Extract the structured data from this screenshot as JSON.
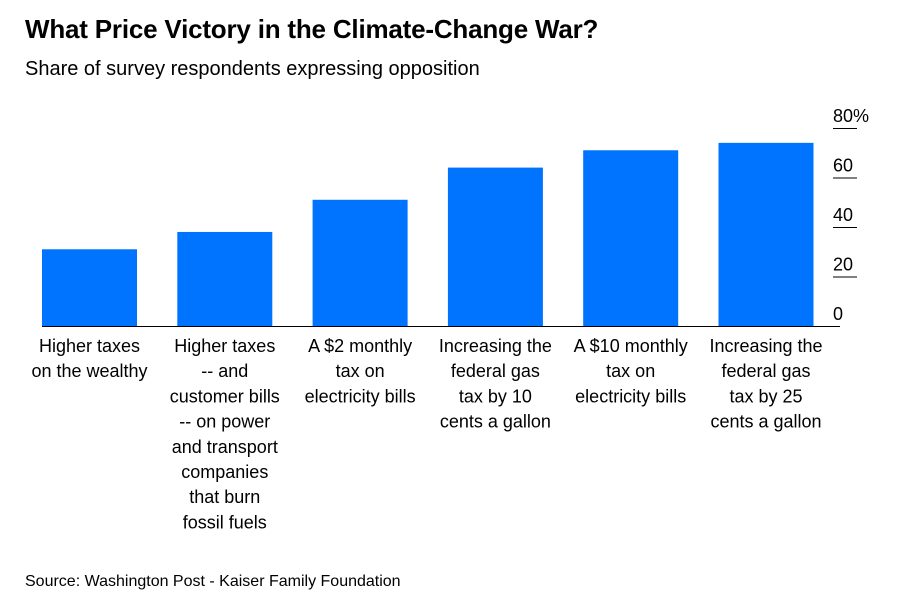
{
  "title": "What Price Victory in the Climate-Change War?",
  "subtitle": "Share of survey respondents expressing opposition",
  "source": "Source: Washington Post - Kaiser Family Foundation",
  "colors": {
    "bar": "#0073ff",
    "axis": "#000000",
    "text": "#000000"
  },
  "chart_data": {
    "type": "bar",
    "categories": [
      "Higher taxes on the wealthy",
      "Higher taxes -- and customer bills -- on power and transport companies that burn fossil fuels",
      "A $2 monthly tax on electricity bills",
      "Increasing the federal gas tax by 10 cents a gallon",
      "A $10 monthly tax on electricity bills",
      "Increasing the federal gas tax by 25 cents a gallon"
    ],
    "category_label_lines": [
      [
        "Higher taxes",
        "on the wealthy"
      ],
      [
        "Higher taxes",
        "-- and",
        "customer bills",
        "-- on power",
        "and transport",
        "companies",
        "that burn",
        "fossil fuels"
      ],
      [
        "A $2 monthly",
        "tax on",
        "electricity bills"
      ],
      [
        "Increasing the",
        "federal gas",
        "tax by 10",
        "cents a gallon"
      ],
      [
        "A $10 monthly",
        "tax on",
        "electricity bills"
      ],
      [
        "Increasing the",
        "federal gas",
        "tax by 25",
        "cents a gallon"
      ]
    ],
    "values": [
      31,
      38,
      51,
      64,
      71,
      74
    ],
    "ylim": [
      0,
      80
    ],
    "yticks": [
      0,
      20,
      40,
      60,
      80
    ],
    "ytick_labels": [
      "0",
      "20",
      "40",
      "60",
      "80%"
    ],
    "y_axis_position": "right",
    "grid": false,
    "legend": "none"
  }
}
